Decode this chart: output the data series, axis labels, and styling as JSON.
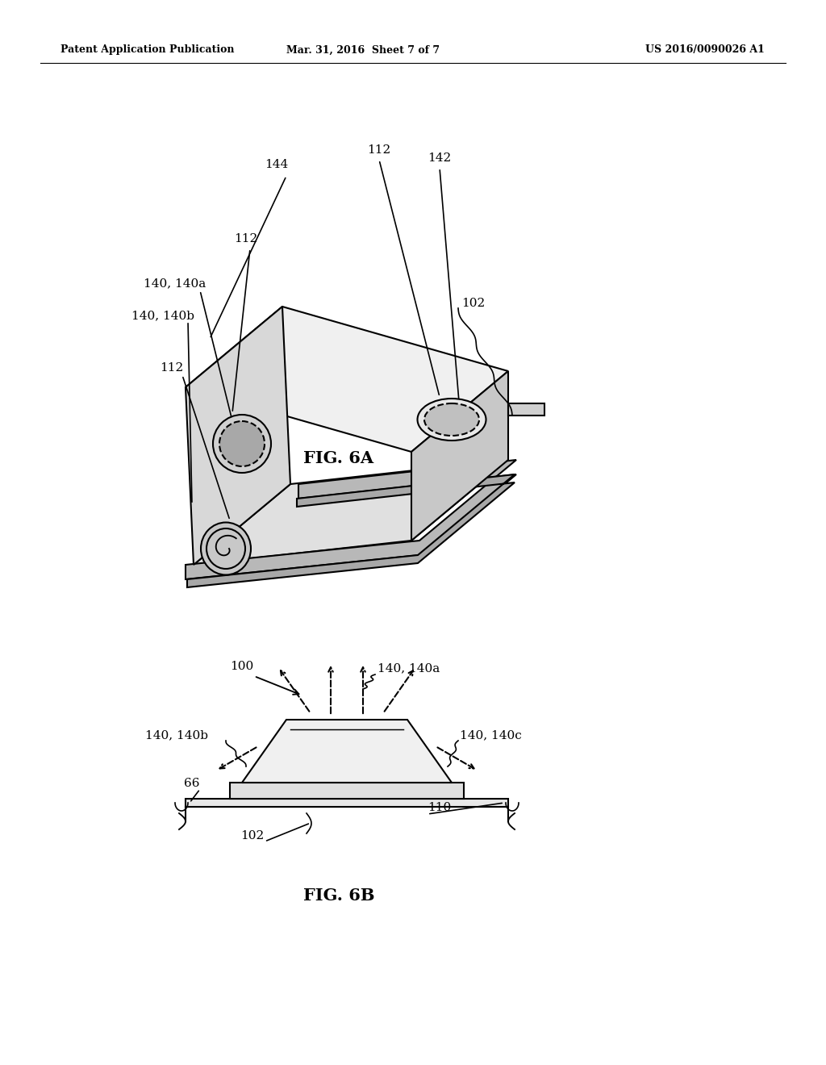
{
  "bg_color": "#ffffff",
  "line_color": "#000000",
  "header_left": "Patent Application Publication",
  "header_mid": "Mar. 31, 2016  Sheet 7 of 7",
  "header_right": "US 2016/0090026 A1",
  "fig6a_label": "FIG. 6A",
  "fig6b_label": "FIG. 6B"
}
